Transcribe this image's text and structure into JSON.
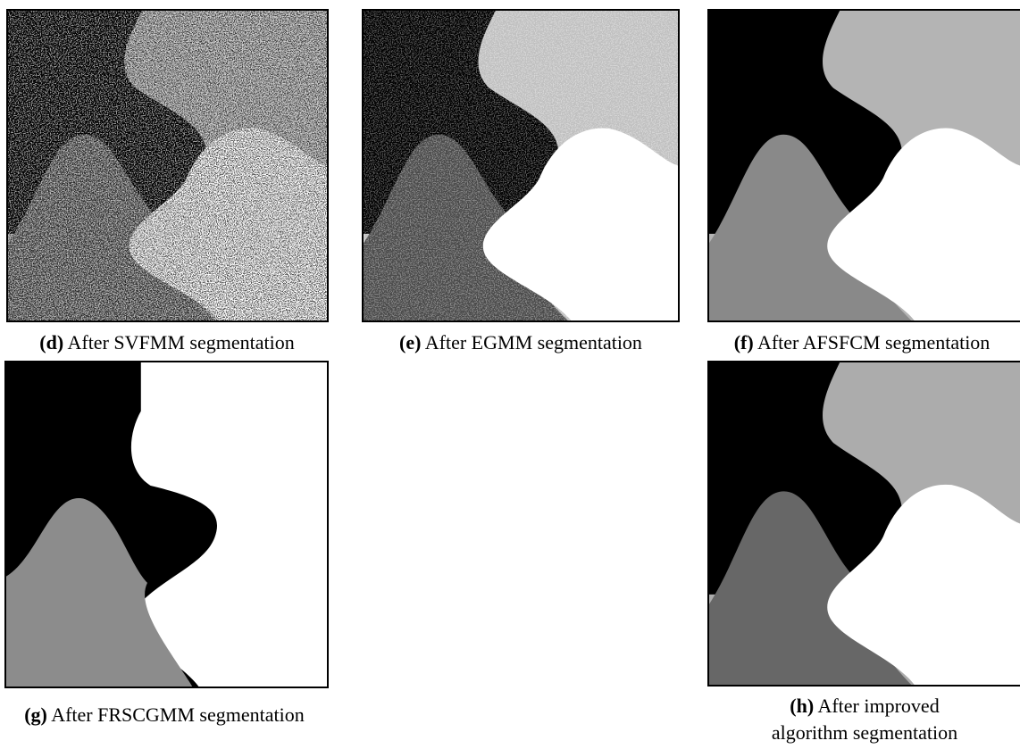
{
  "panels": [
    {
      "tag": "(d)",
      "caption": "After SVFMM segmentation"
    },
    {
      "tag": "(e)",
      "caption": "After EGMM segmentation"
    },
    {
      "tag": "(f)",
      "caption": "After AFSFCM segmentation"
    },
    {
      "tag": "(g)",
      "caption": "After FRSCGMM segmentation"
    },
    {
      "tag": "(h)",
      "caption": "After improved algorithm segmentation"
    }
  ]
}
